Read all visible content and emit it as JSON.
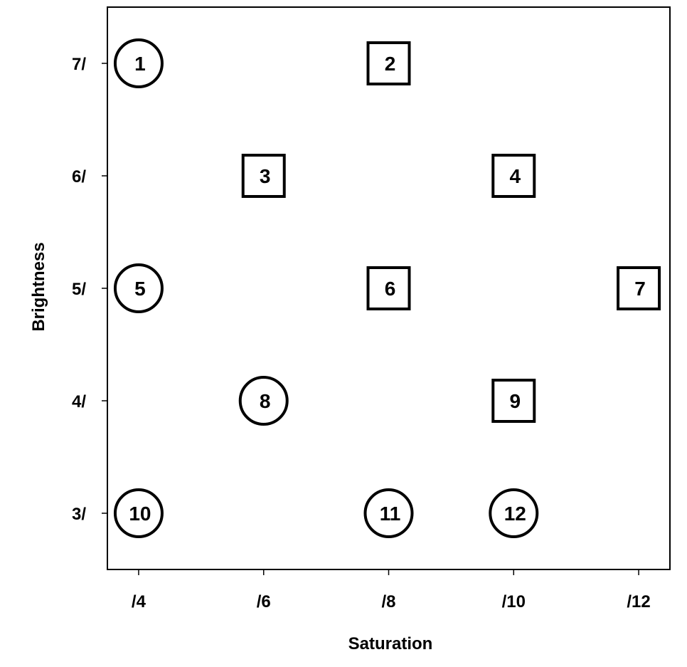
{
  "chart_data": {
    "type": "scatter",
    "title": "",
    "xlabel": "Saturation",
    "ylabel": "Brightness",
    "xlim": [
      3.5,
      12.5
    ],
    "ylim": [
      2.5,
      7.5
    ],
    "x_ticks": [
      {
        "value": 4,
        "label": "/4"
      },
      {
        "value": 6,
        "label": "/6"
      },
      {
        "value": 8,
        "label": "/8"
      },
      {
        "value": 10,
        "label": "/10"
      },
      {
        "value": 12,
        "label": "/12"
      }
    ],
    "y_ticks": [
      {
        "value": 7,
        "label": "7/"
      },
      {
        "value": 6,
        "label": "6/"
      },
      {
        "value": 5,
        "label": "5/"
      },
      {
        "value": 4,
        "label": "4/"
      },
      {
        "value": 3,
        "label": "3/"
      }
    ],
    "grid": false,
    "points": [
      {
        "label": "1",
        "x": 4,
        "y": 7,
        "shape": "circle"
      },
      {
        "label": "2",
        "x": 8,
        "y": 7,
        "shape": "square"
      },
      {
        "label": "3",
        "x": 6,
        "y": 6,
        "shape": "square"
      },
      {
        "label": "4",
        "x": 10,
        "y": 6,
        "shape": "square"
      },
      {
        "label": "5",
        "x": 4,
        "y": 5,
        "shape": "circle"
      },
      {
        "label": "6",
        "x": 8,
        "y": 5,
        "shape": "square"
      },
      {
        "label": "7",
        "x": 12,
        "y": 5,
        "shape": "square"
      },
      {
        "label": "8",
        "x": 6,
        "y": 4,
        "shape": "circle"
      },
      {
        "label": "9",
        "x": 10,
        "y": 4,
        "shape": "square"
      },
      {
        "label": "10",
        "x": 4,
        "y": 3,
        "shape": "circle"
      },
      {
        "label": "11",
        "x": 8,
        "y": 3,
        "shape": "circle"
      },
      {
        "label": "12",
        "x": 10,
        "y": 3,
        "shape": "circle"
      }
    ]
  }
}
